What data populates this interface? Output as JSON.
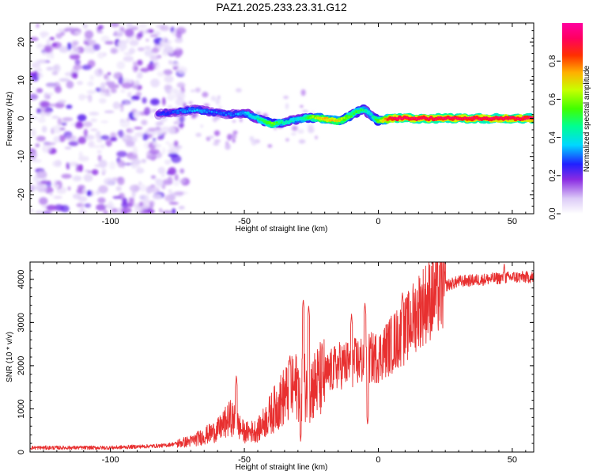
{
  "title": "PAZ1.2025.233.23.31.G12",
  "chart_data": [
    {
      "type": "heatmap",
      "xlabel": "Height of straight line (km)",
      "ylabel": "Frequency (Hz)",
      "xlim": [
        -130,
        58
      ],
      "ylim": [
        -25,
        25
      ],
      "xticks": [
        -100,
        -50,
        0,
        50
      ],
      "yticks": [
        -20,
        -10,
        0,
        10,
        20
      ],
      "colorbar": {
        "label": "Normalized spectral amplitude",
        "range": [
          0,
          1
        ],
        "ticks": [
          0.0,
          0.2,
          0.4,
          0.6,
          0.8
        ],
        "tick_labels": [
          "0.0",
          "0.2",
          "0.4",
          "0.6",
          "0.8"
        ]
      },
      "ridge": {
        "description_points_x": [
          -82,
          -75,
          -68,
          -60,
          -55,
          -50,
          -45,
          -40,
          -35,
          -30,
          -25,
          -20,
          -15,
          -10,
          -6,
          -3,
          0,
          5,
          15,
          30,
          45,
          58
        ],
        "frequency_y": [
          1.0,
          1.8,
          2.2,
          1.5,
          1.0,
          1.5,
          0.0,
          -1.5,
          -1.0,
          -0.3,
          0.2,
          0.0,
          -0.8,
          0.8,
          2.5,
          1.0,
          -0.8,
          0.0,
          0.0,
          0.0,
          0.0,
          0.0
        ],
        "amplitude": [
          0.25,
          0.3,
          0.35,
          0.3,
          0.3,
          0.35,
          0.45,
          0.6,
          0.45,
          0.4,
          0.6,
          0.75,
          0.7,
          0.55,
          0.5,
          0.4,
          0.6,
          0.95,
          0.95,
          0.95,
          0.95,
          0.95
        ]
      },
      "noise_region_x": [
        -130,
        -78
      ],
      "noise_amplitude_range": [
        0.0,
        0.2
      ]
    },
    {
      "type": "line",
      "xlabel": "Height of straight line (km)",
      "ylabel": "SNR (10 * v/v)",
      "xlim": [
        -130,
        58
      ],
      "ylim": [
        0,
        4400
      ],
      "xticks": [
        -100,
        -50,
        0,
        50
      ],
      "yticks": [
        0,
        1000,
        2000,
        3000,
        4000
      ],
      "color": "#e83030",
      "envelope_x": [
        -130,
        -100,
        -80,
        -70,
        -60,
        -55,
        -50,
        -45,
        -40,
        -35,
        -30,
        -25,
        -20,
        -15,
        -10,
        -5,
        0,
        5,
        10,
        15,
        20,
        25,
        30,
        40,
        50,
        58
      ],
      "envelope_y": [
        100,
        100,
        150,
        250,
        500,
        800,
        450,
        500,
        900,
        1300,
        1550,
        1500,
        1750,
        2000,
        2050,
        2150,
        2200,
        2500,
        2800,
        3300,
        3600,
        3850,
        3950,
        4000,
        4050,
        4050
      ],
      "spikes": [
        {
          "x": -53,
          "y": 1780
        },
        {
          "x": -33,
          "y": 2250
        },
        {
          "x": -28,
          "y": 3550
        },
        {
          "x": -26,
          "y": 3400
        },
        {
          "x": -5,
          "y": 3460
        },
        {
          "x": -10,
          "y": 3200
        },
        {
          "x": 9,
          "y": 3700
        },
        {
          "x": 47,
          "y": 4380
        }
      ],
      "dips": [
        {
          "x": -29,
          "y": 250
        },
        {
          "x": -4,
          "y": 620
        }
      ]
    }
  ]
}
